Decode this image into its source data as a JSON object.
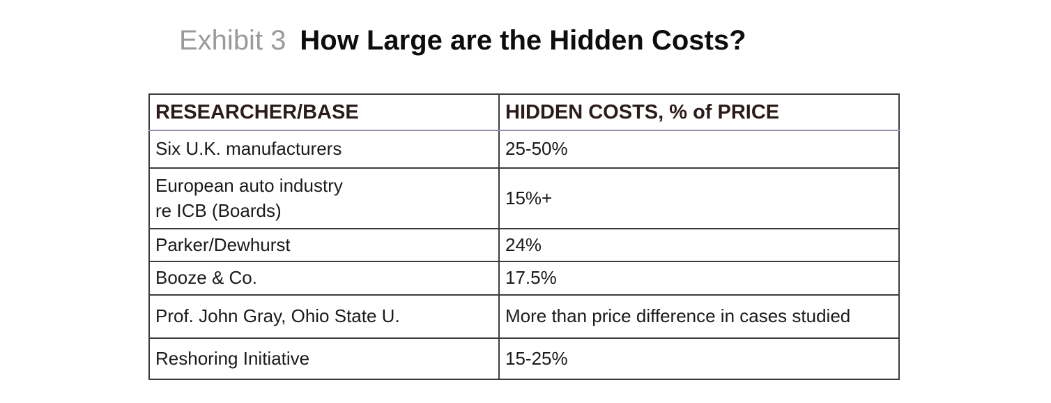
{
  "title": {
    "exhibit_label": "Exhibit 3",
    "text": "How Large are the Hidden Costs?"
  },
  "table": {
    "columns": [
      "RESEARCHER/BASE",
      "HIDDEN COSTS, % of PRICE"
    ],
    "rows": [
      {
        "researcher": "Six U.K. manufacturers",
        "hidden_costs": "25-50%"
      },
      {
        "researcher": "European auto industry\nre ICB (Boards)",
        "hidden_costs": "15%+"
      },
      {
        "researcher": "Parker/Dewhurst",
        "hidden_costs": "24%"
      },
      {
        "researcher": "Booze & Co.",
        "hidden_costs": "17.5%"
      },
      {
        "researcher": "Prof. John Gray, Ohio State U.",
        "hidden_costs": "More than price difference in cases studied"
      },
      {
        "researcher": "Reshoring Initiative",
        "hidden_costs": "15-25%"
      }
    ]
  },
  "colors": {
    "title_label": "#9a9a9a",
    "title_text": "#0d0d0d",
    "header_text": "#2b1b1b",
    "body_text": "#1a1a1a",
    "border": "#3c3c3c",
    "header_underline": "#8f8fbf",
    "background": "#ffffff"
  }
}
